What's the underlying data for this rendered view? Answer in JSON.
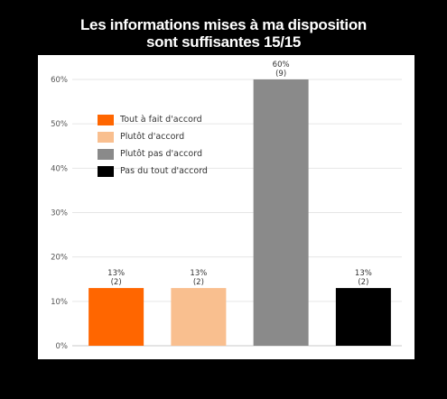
{
  "title": {
    "line1": "Les informations mises à ma disposition",
    "line2": "sont suffisantes 15/15"
  },
  "colors": {
    "page_background": "#000000",
    "panel_background": "#ffffff",
    "gridline": "#e6e6e6",
    "axis_text": "#555555"
  },
  "chart_data": {
    "type": "bar",
    "categories": [
      "Tout à fait d'accord",
      "Plutôt d'accord",
      "Plutôt pas d'accord",
      "Pas du tout d'accord"
    ],
    "values": [
      13,
      13,
      60,
      13
    ],
    "counts": [
      2,
      2,
      9,
      2
    ],
    "value_labels": [
      "13%",
      "13%",
      "60%",
      "13%"
    ],
    "count_labels": [
      "(2)",
      "(2)",
      "(9)",
      "(2)"
    ],
    "colors": [
      "#ff6600",
      "#f9bf8f",
      "#8a8a8a",
      "#000000"
    ],
    "y_ticks": [
      0,
      10,
      20,
      30,
      40,
      50,
      60
    ],
    "y_tick_labels": [
      "0%",
      "10%",
      "20%",
      "30%",
      "40%",
      "50%",
      "60%"
    ],
    "ylim": [
      0,
      60
    ],
    "grid": true,
    "legend_position": "top-left",
    "legend": [
      {
        "label": "Tout à fait d'accord",
        "color": "#ff6600"
      },
      {
        "label": "Plutôt d'accord",
        "color": "#f9bf8f"
      },
      {
        "label": "Plutôt pas d'accord",
        "color": "#8a8a8a"
      },
      {
        "label": "Pas du tout d'accord",
        "color": "#000000"
      }
    ]
  }
}
